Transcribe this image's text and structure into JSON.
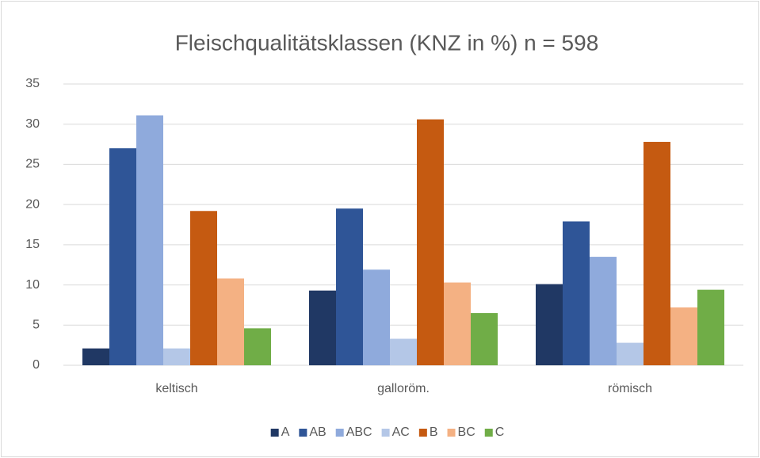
{
  "chart_data": {
    "type": "bar",
    "title": "Fleischqualitätsklassen (KNZ in %)  n = 598",
    "categories": [
      "keltisch",
      "galloröm.",
      "römisch"
    ],
    "series": [
      {
        "name": "A",
        "color": "#203864",
        "values": [
          2.1,
          9.3,
          10.1
        ]
      },
      {
        "name": "AB",
        "color": "#2f5597",
        "values": [
          27.0,
          19.5,
          17.9
        ]
      },
      {
        "name": "ABC",
        "color": "#8faadc",
        "values": [
          31.1,
          11.9,
          13.5
        ]
      },
      {
        "name": "AC",
        "color": "#b4c7e7",
        "values": [
          2.1,
          3.3,
          2.8
        ]
      },
      {
        "name": "B",
        "color": "#c55a11",
        "values": [
          19.2,
          30.6,
          27.8
        ]
      },
      {
        "name": "BC",
        "color": "#f4b183",
        "values": [
          10.8,
          10.3,
          7.2
        ]
      },
      {
        "name": "C",
        "color": "#70ad47",
        "values": [
          4.6,
          6.5,
          9.4
        ]
      }
    ],
    "ylim": [
      0,
      35
    ],
    "yticks": [
      0,
      5,
      10,
      15,
      20,
      25,
      30,
      35
    ],
    "grid": true,
    "legend": "bottom"
  }
}
